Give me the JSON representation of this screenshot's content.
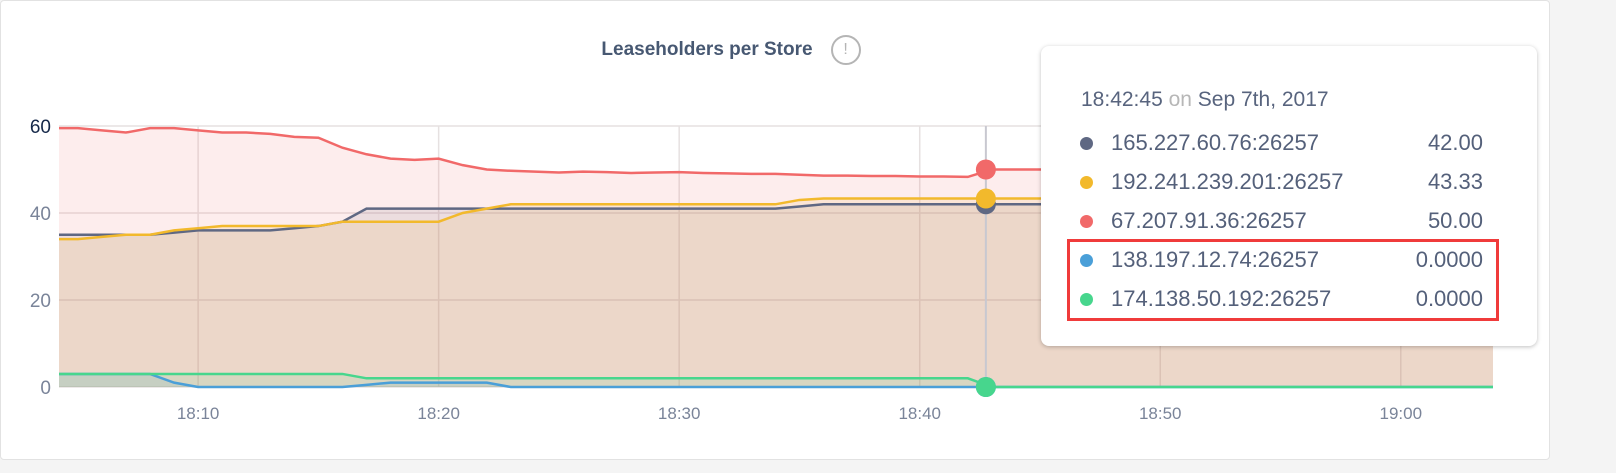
{
  "chart_data": {
    "type": "area",
    "title": "Leaseholders per Store",
    "xlabel": "",
    "ylabel": "",
    "ylim": [
      0,
      60
    ],
    "yticks": [
      0,
      20,
      40,
      60
    ],
    "xticks": [
      "18:10",
      "18:20",
      "18:30",
      "18:40",
      "18:50",
      "19:00"
    ],
    "xlim": [
      "18:04:13",
      "19:03:50"
    ],
    "grid": true,
    "x": [
      "18:04",
      "18:05",
      "18:06",
      "18:07",
      "18:08",
      "18:09",
      "18:10",
      "18:11",
      "18:12",
      "18:13",
      "18:14",
      "18:15",
      "18:16",
      "18:17",
      "18:18",
      "18:19",
      "18:20",
      "18:21",
      "18:22",
      "18:23",
      "18:24",
      "18:25",
      "18:26",
      "18:27",
      "18:28",
      "18:29",
      "18:30",
      "18:31",
      "18:32",
      "18:33",
      "18:34",
      "18:35",
      "18:36",
      "18:37",
      "18:38",
      "18:39",
      "18:40",
      "18:41",
      "18:42",
      "18:43",
      "18:44",
      "18:45",
      "18:46",
      "18:47",
      "18:48",
      "18:49",
      "18:50",
      "18:51",
      "18:52",
      "18:53",
      "18:54",
      "18:55",
      "18:56",
      "18:57",
      "18:58",
      "18:59",
      "19:00",
      "19:01",
      "19:02",
      "19:03",
      "19:04"
    ],
    "series": [
      {
        "name": "165.227.60.76:26257",
        "color": "#5f6883",
        "values": [
          35,
          35,
          35,
          35,
          35,
          35.5,
          36,
          36,
          36,
          36,
          36.5,
          37,
          38,
          41,
          41,
          41,
          41,
          41,
          41,
          41,
          41,
          41,
          41,
          41,
          41,
          41,
          41,
          41,
          41,
          41,
          41,
          41.5,
          42,
          42,
          42,
          42,
          42,
          42,
          42,
          42,
          42,
          42,
          42,
          42,
          42,
          42,
          42,
          42,
          42,
          42,
          42,
          42,
          42,
          42,
          42,
          42,
          42,
          42,
          42,
          42,
          42
        ]
      },
      {
        "name": "192.241.239.201:26257",
        "color": "#f2b92c",
        "values": [
          34,
          34,
          34.5,
          35,
          35,
          36,
          36.5,
          37,
          37,
          37,
          37,
          37,
          38,
          38,
          38,
          38,
          38,
          40,
          41,
          42,
          42,
          42,
          42,
          42,
          42,
          42,
          42,
          42,
          42,
          42,
          42,
          43,
          43.33,
          43.33,
          43.33,
          43.33,
          43.33,
          43.33,
          43.33,
          43.33,
          43.33,
          43.33,
          43.33,
          43.33,
          43.33,
          43.33,
          43.33,
          43.33,
          43.33,
          43.33,
          43.33,
          43.33,
          43.33,
          43.33,
          43.33,
          43.33,
          43.33,
          43.33,
          43.33,
          43.33,
          43.33
        ]
      },
      {
        "name": "67.207.91.36:26257",
        "color": "#f16969",
        "values": [
          59.5,
          59.5,
          59,
          58.5,
          59.5,
          59.5,
          59,
          58.5,
          58.5,
          58.2,
          57.5,
          57.3,
          55,
          53.5,
          52.5,
          52.2,
          52.5,
          51,
          50,
          49.7,
          49.5,
          49.3,
          49.5,
          49.4,
          49.2,
          49.3,
          49.4,
          49.2,
          49.1,
          49,
          49,
          48.8,
          48.6,
          48.6,
          48.5,
          48.5,
          48.4,
          48.4,
          48.3,
          50,
          50,
          50,
          50,
          50,
          50,
          50,
          50,
          50,
          50,
          50,
          50,
          50,
          50,
          50,
          50,
          50,
          50,
          50,
          50,
          50,
          50
        ]
      },
      {
        "name": "138.197.12.74:26257",
        "color": "#4a9fd8",
        "values": [
          3,
          3,
          3,
          3,
          3,
          1,
          0,
          0,
          0,
          0,
          0,
          0,
          0,
          0.5,
          1,
          1,
          1,
          1,
          1,
          0,
          0,
          0,
          0,
          0,
          0,
          0,
          0,
          0,
          0,
          0,
          0,
          0,
          0,
          0,
          0,
          0,
          0,
          0,
          0,
          0,
          0,
          0,
          0,
          0,
          0,
          0,
          0,
          0,
          0,
          0,
          0,
          0,
          0,
          0,
          0,
          0,
          0,
          0,
          0,
          0,
          0
        ]
      },
      {
        "name": "174.138.50.192:26257",
        "color": "#47d68d",
        "values": [
          3,
          3,
          3,
          3,
          3,
          3,
          3,
          3,
          3,
          3,
          3,
          3,
          3,
          2,
          2,
          2,
          2,
          2,
          2,
          2,
          2,
          2,
          2,
          2,
          2,
          2,
          2,
          2,
          2,
          2,
          2,
          2,
          2,
          2,
          2,
          2,
          2,
          2,
          2,
          0,
          0,
          0,
          0,
          0,
          0,
          0,
          0,
          0,
          0,
          0,
          0,
          0,
          0,
          0,
          0,
          0,
          0,
          0,
          0,
          0,
          0
        ]
      }
    ],
    "hover": {
      "time": "18:42:45",
      "on": "on",
      "date": "Sep 7th, 2017",
      "values": [
        "42.00",
        "43.33",
        "50.00",
        "0.0000",
        "0.0000"
      ]
    }
  }
}
